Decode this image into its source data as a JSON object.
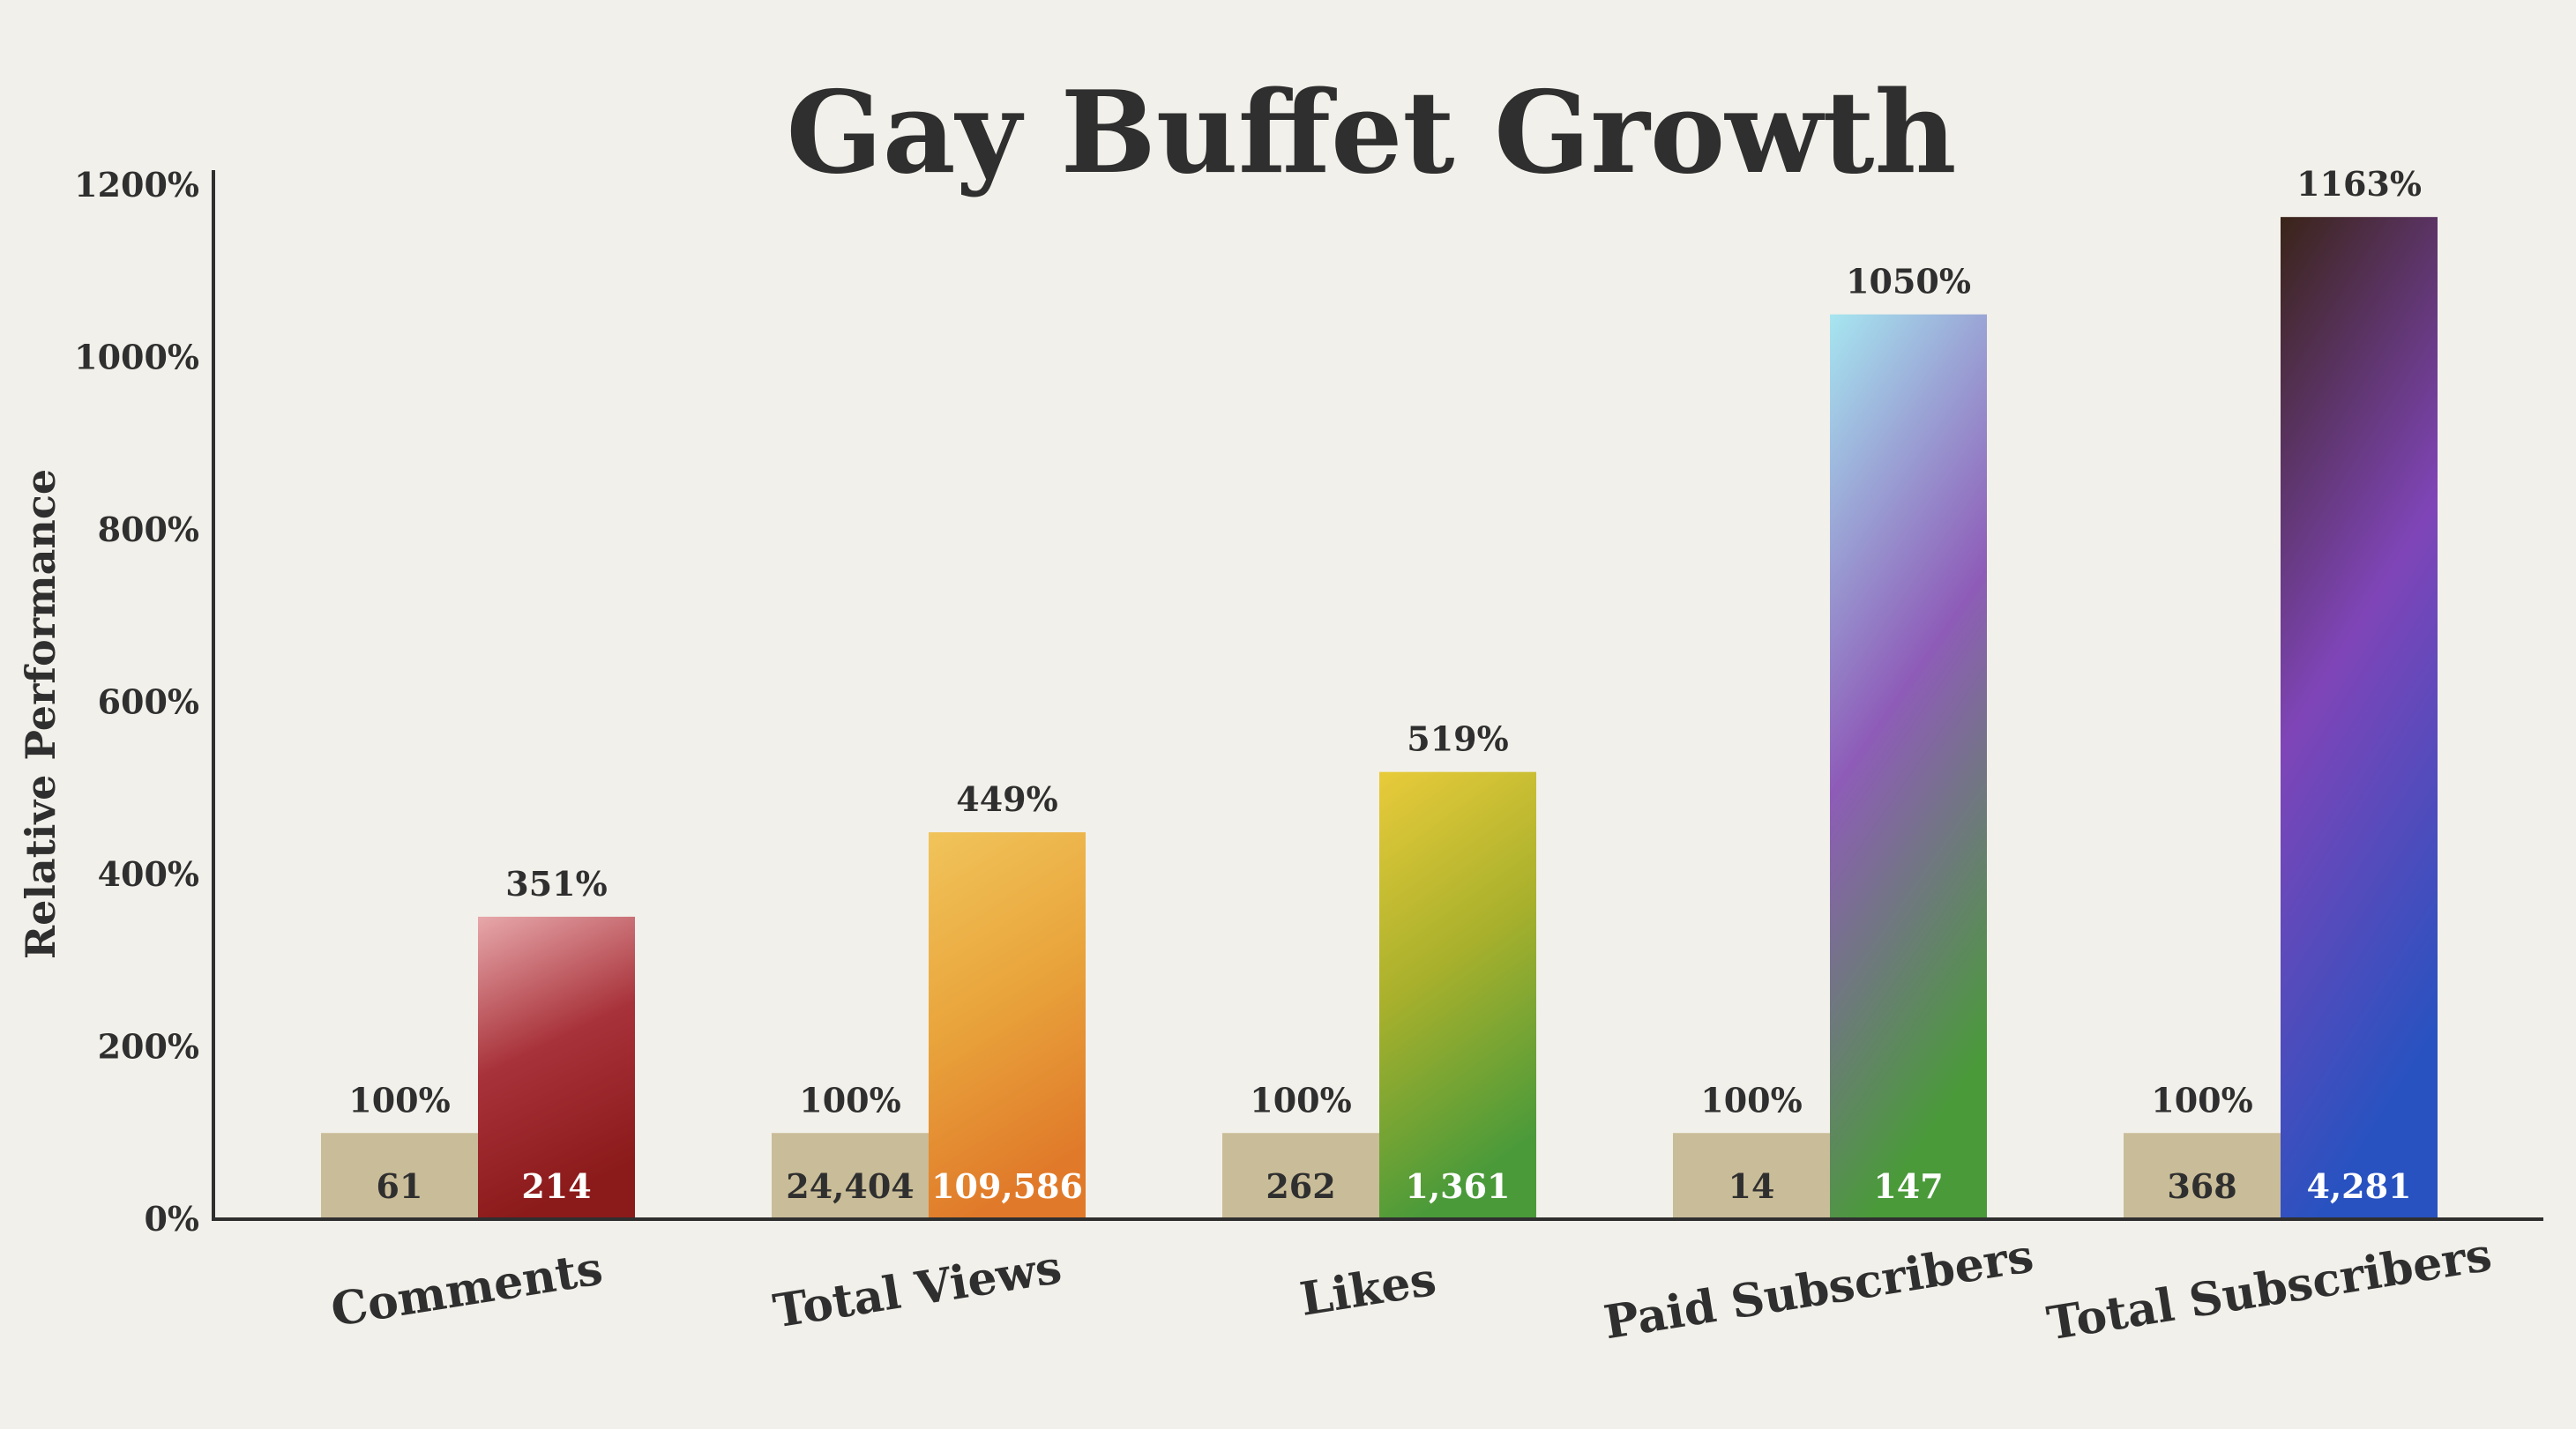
{
  "chart_data": {
    "type": "bar",
    "title": "Gay Buffet Growth",
    "ylabel": "Relative Performance",
    "xlabel": "",
    "ylim": [
      0,
      1200
    ],
    "yticks": [
      0,
      200,
      400,
      600,
      800,
      1000,
      1200
    ],
    "ytick_labels": [
      "0%",
      "200%",
      "400%",
      "600%",
      "800%",
      "1000%",
      "1200%"
    ],
    "grid": false,
    "categories": [
      "Comments",
      "Total Views",
      "Likes",
      "Paid Subscribers",
      "Total Subscribers"
    ],
    "series": [
      {
        "values": [
          100,
          100,
          100,
          100,
          100
        ],
        "percent_labels": [
          "100%",
          "100%",
          "100%",
          "100%",
          "100%"
        ],
        "count_labels": [
          "61",
          "24,404",
          "262",
          "14",
          "368"
        ],
        "color": "#c9bc98"
      },
      {
        "values": [
          351,
          449,
          519,
          1050,
          1163
        ],
        "percent_labels": [
          "351%",
          "449%",
          "519%",
          "1050%",
          "1163%"
        ],
        "count_labels": [
          "214",
          "109,586",
          "1,361",
          "147",
          "4,281"
        ],
        "gradients": [
          [
            "#e7a8ab",
            "#a8323a",
            "#8b1a1a"
          ],
          [
            "#f0c45a",
            "#e9a53c",
            "#e07a2a"
          ],
          [
            "#e8cb3a",
            "#a8b02c",
            "#4a9a3a"
          ],
          [
            "#a6e6f0",
            "#8e5cb8",
            "#4a9a3a"
          ],
          [
            "#3a2418",
            "#7f45b8",
            "#2852c0"
          ]
        ]
      }
    ]
  }
}
